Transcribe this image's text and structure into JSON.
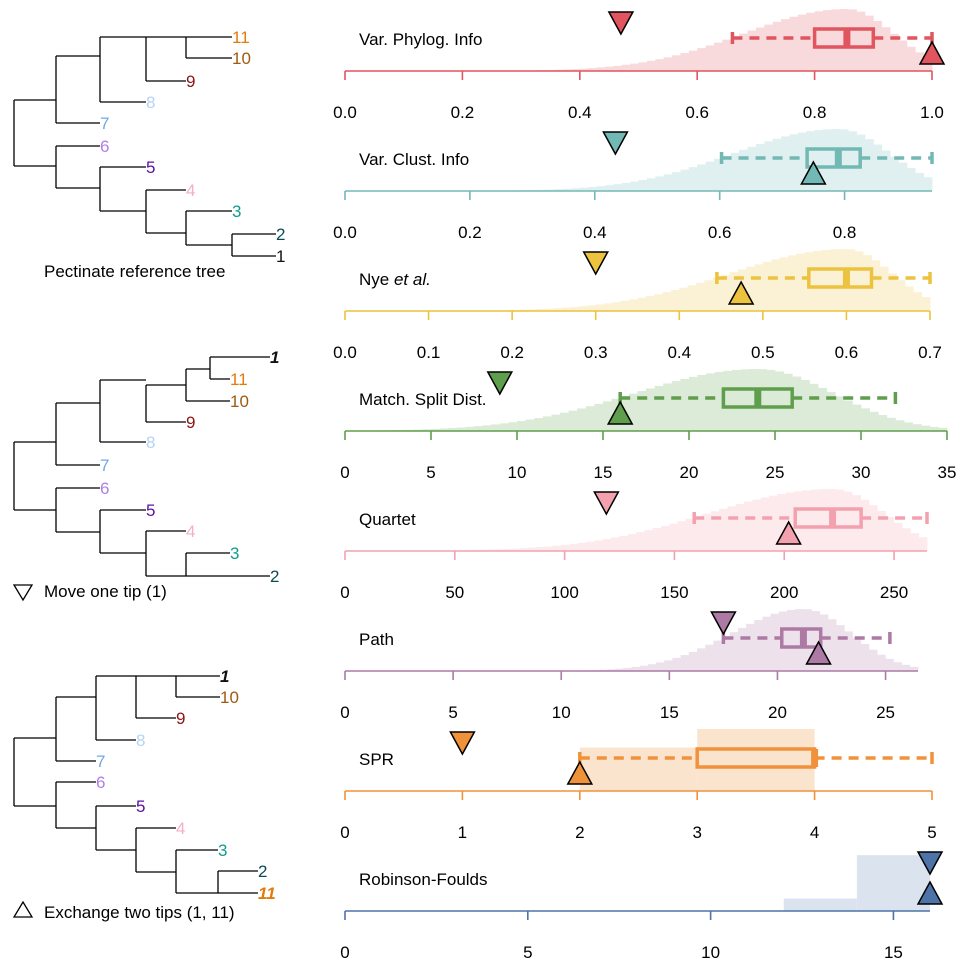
{
  "trees": [
    {
      "caption": "Pectinate reference tree",
      "caption_marker": "",
      "tips": [
        "11",
        "10",
        "9",
        "8",
        "7",
        "6",
        "5",
        "4",
        "3",
        "2",
        "1"
      ]
    },
    {
      "caption": "Move one tip (1)",
      "caption_marker": "down-triangle",
      "tips": [
        "1",
        "11",
        "10",
        "9",
        "8",
        "7",
        "6",
        "5",
        "4",
        "3",
        "2"
      ]
    },
    {
      "caption": "Exchange two tips (1, 11)",
      "caption_marker": "up-triangle",
      "tips": [
        "1",
        "10",
        "9",
        "8",
        "7",
        "6",
        "5",
        "4",
        "3",
        "2",
        "11"
      ]
    }
  ],
  "tip_colors": {
    "1": "#111111",
    "2": "#0d4a52",
    "3": "#149b8e",
    "4": "#f4aec8",
    "5": "#5a0fa0",
    "6": "#b07ee8",
    "7": "#6fa8e8",
    "8": "#b6d3f2",
    "9": "#8b1414",
    "10": "#9e5a10",
    "11": "#e07b0c"
  },
  "chart_data": [
    {
      "type": "box-histogram",
      "title": "Var. Phylog. Info",
      "color": "#e0555e",
      "xlim": [
        0,
        1.0
      ],
      "ticks": [
        "0.0",
        "0.2",
        "0.4",
        "0.6",
        "0.8",
        "1.0"
      ],
      "box": {
        "whisker_low": 0.66,
        "q1": 0.8,
        "median": 0.855,
        "q3": 0.9,
        "whisker_high": 1.0
      },
      "move_one_tip": 0.47,
      "exchange_two_tips": 1.0
    },
    {
      "type": "box-histogram",
      "title": "Var. Clust. Info",
      "color": "#72b8b4",
      "xlim": [
        0,
        0.94
      ],
      "ticks": [
        "0.0",
        "0.2",
        "0.4",
        "0.6",
        "0.8"
      ],
      "box": {
        "whisker_low": 0.603,
        "q1": 0.74,
        "median": 0.79,
        "q3": 0.825,
        "whisker_high": 0.94
      },
      "move_one_tip": 0.433,
      "exchange_two_tips": 0.75
    },
    {
      "type": "box-histogram",
      "title": "Nye et al.",
      "color": "#ecc23e",
      "xlim": [
        0,
        0.7
      ],
      "ticks": [
        "0.0",
        "0.1",
        "0.2",
        "0.3",
        "0.4",
        "0.5",
        "0.6",
        "0.7"
      ],
      "box": {
        "whisker_low": 0.445,
        "q1": 0.555,
        "median": 0.6,
        "q3": 0.63,
        "whisker_high": 0.7
      },
      "move_one_tip": 0.3,
      "exchange_two_tips": 0.474
    },
    {
      "type": "box-histogram",
      "title": "Match. Split Dist.",
      "color": "#5f9e4c",
      "xlim": [
        0,
        35
      ],
      "ticks": [
        "0",
        "5",
        "10",
        "15",
        "20",
        "25",
        "30",
        "35"
      ],
      "box": {
        "whisker_low": 16,
        "q1": 22,
        "median": 24,
        "q3": 26,
        "whisker_high": 32
      },
      "move_one_tip": 9,
      "exchange_two_tips": 16
    },
    {
      "type": "box-histogram",
      "title": "Quartet",
      "color": "#f3a1ae",
      "xlim": [
        0,
        265
      ],
      "ticks": [
        "0",
        "50",
        "100",
        "150",
        "200",
        "250"
      ],
      "box": {
        "whisker_low": 159,
        "q1": 205,
        "median": 222,
        "q3": 235,
        "whisker_high": 265
      },
      "move_one_tip": 119,
      "exchange_two_tips": 202
    },
    {
      "type": "box-histogram",
      "title": "Path",
      "color": "#ac7aa4",
      "xlim": [
        0,
        26.5
      ],
      "ticks": [
        "0",
        "5",
        "10",
        "15",
        "20",
        "25"
      ],
      "box": {
        "whisker_low": 17.5,
        "q1": 20.2,
        "median": 21.2,
        "q3": 22.0,
        "whisker_high": 25.2
      },
      "move_one_tip": 17.5,
      "exchange_two_tips": 21.9
    },
    {
      "type": "box-histogram",
      "title": "SPR",
      "color": "#f0923a",
      "xlim": [
        0,
        5
      ],
      "ticks": [
        "0",
        "1",
        "2",
        "3",
        "4",
        "5"
      ],
      "box": {
        "whisker_low": 2,
        "q1": 3,
        "median": 4,
        "q3": 4,
        "whisker_high": 5
      },
      "move_one_tip": 1,
      "exchange_two_tips": 2
    },
    {
      "type": "box-histogram",
      "title": "Robinson-Foulds",
      "color": "#4d73a8",
      "xlim": [
        0,
        16
      ],
      "ticks": [
        "0",
        "5",
        "10",
        "15"
      ],
      "box": null,
      "move_one_tip": 16,
      "exchange_two_tips": 16
    }
  ]
}
